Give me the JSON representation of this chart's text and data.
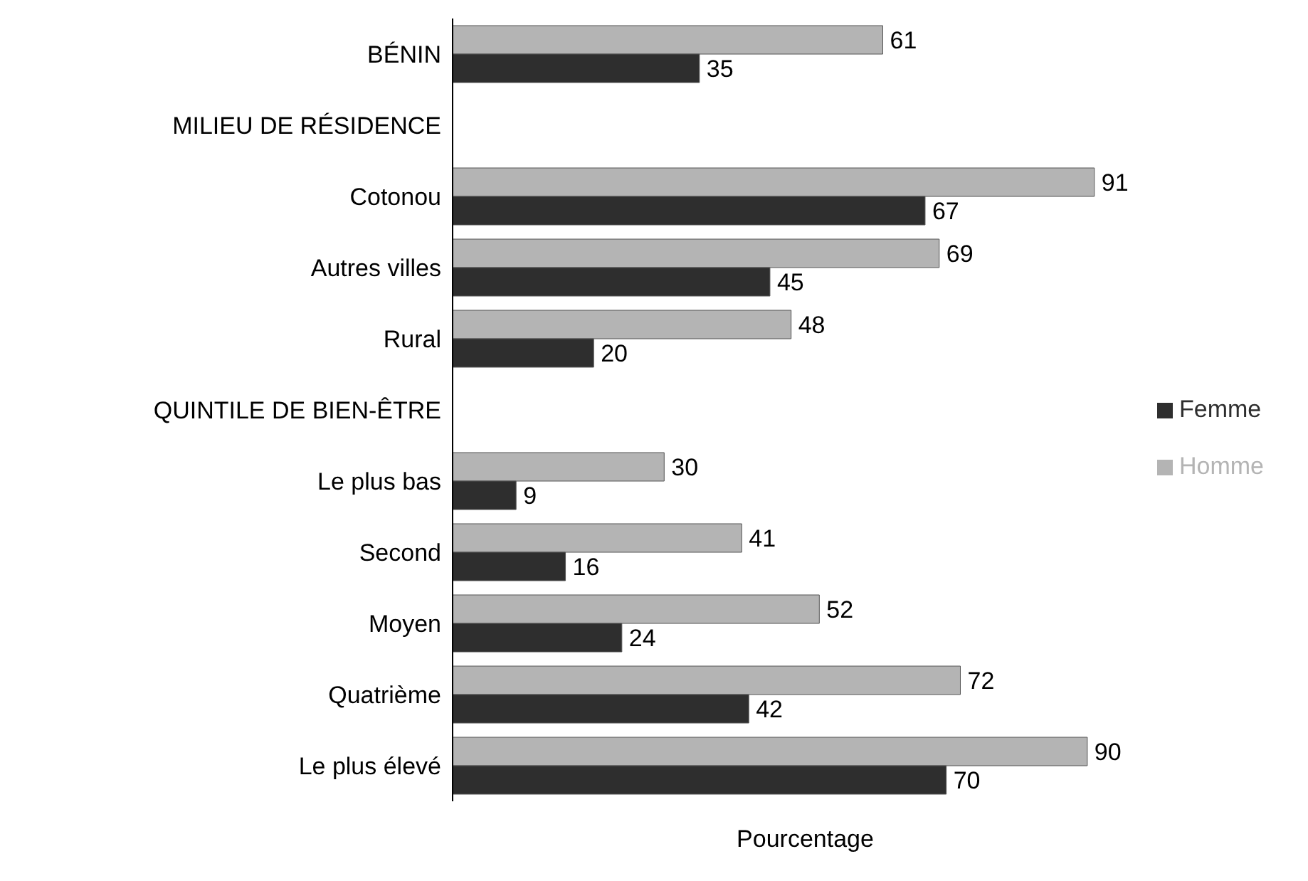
{
  "chart_data": {
    "type": "bar",
    "orientation": "horizontal",
    "xlabel": "Pourcentage",
    "categories": [
      "BÉNIN",
      "MILIEU DE RÉSIDENCE",
      "Cotonou",
      "Autres villes",
      "Rural",
      "QUINTILE DE BIEN-ÊTRE",
      "Le plus bas",
      "Second",
      "Moyen",
      "Quatrième",
      "Le plus élevé"
    ],
    "series": [
      {
        "name": "Homme",
        "color": "#b4b4b4",
        "values": [
          61,
          null,
          91,
          69,
          48,
          null,
          30,
          41,
          52,
          72,
          90
        ]
      },
      {
        "name": "Femme",
        "color": "#2e2e2e",
        "values": [
          35,
          null,
          67,
          45,
          20,
          null,
          9,
          16,
          24,
          42,
          70
        ]
      }
    ],
    "data_labels": true,
    "legend": "right",
    "tick_labels": "y",
    "grid": false
  }
}
